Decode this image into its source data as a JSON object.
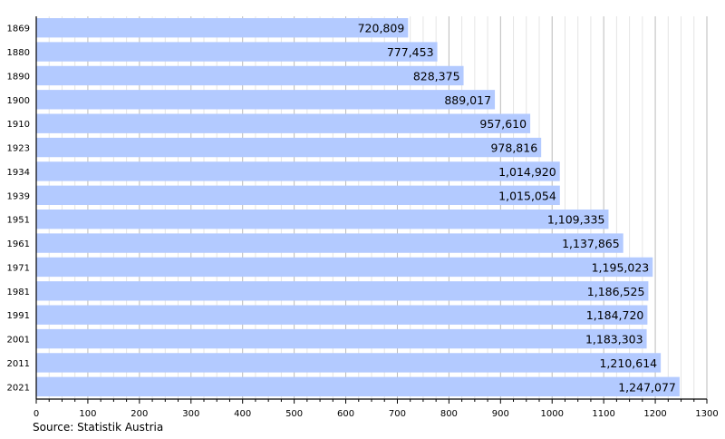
{
  "chart_data": {
    "type": "bar",
    "orientation": "horizontal",
    "categories": [
      "1869",
      "1880",
      "1890",
      "1900",
      "1910",
      "1923",
      "1934",
      "1939",
      "1951",
      "1961",
      "1971",
      "1981",
      "1991",
      "2001",
      "2011",
      "2021"
    ],
    "values": [
      720809,
      777453,
      828375,
      889017,
      957610,
      978816,
      1014920,
      1015054,
      1109335,
      1137865,
      1195023,
      1186525,
      1184720,
      1183303,
      1210614,
      1247077
    ],
    "value_labels": [
      "720,809",
      "777,453",
      "828,375",
      "889,017",
      "957,610",
      "978,816",
      "1,014,920",
      "1,015,054",
      "1,109,335",
      "1,137,865",
      "1,195,023",
      "1,186,525",
      "1,184,720",
      "1,183,303",
      "1,210,614",
      "1,247,077"
    ],
    "x_ticks": [
      "0",
      "100",
      "200",
      "300",
      "400",
      "500",
      "600",
      "700",
      "800",
      "900",
      "1000",
      "1100",
      "1200",
      "1300"
    ],
    "x_tick_unit": "thousands",
    "xlim": [
      0,
      1300
    ],
    "grid": true,
    "bar_color": "#b3caff",
    "source": "Source: Statistik Austria"
  }
}
